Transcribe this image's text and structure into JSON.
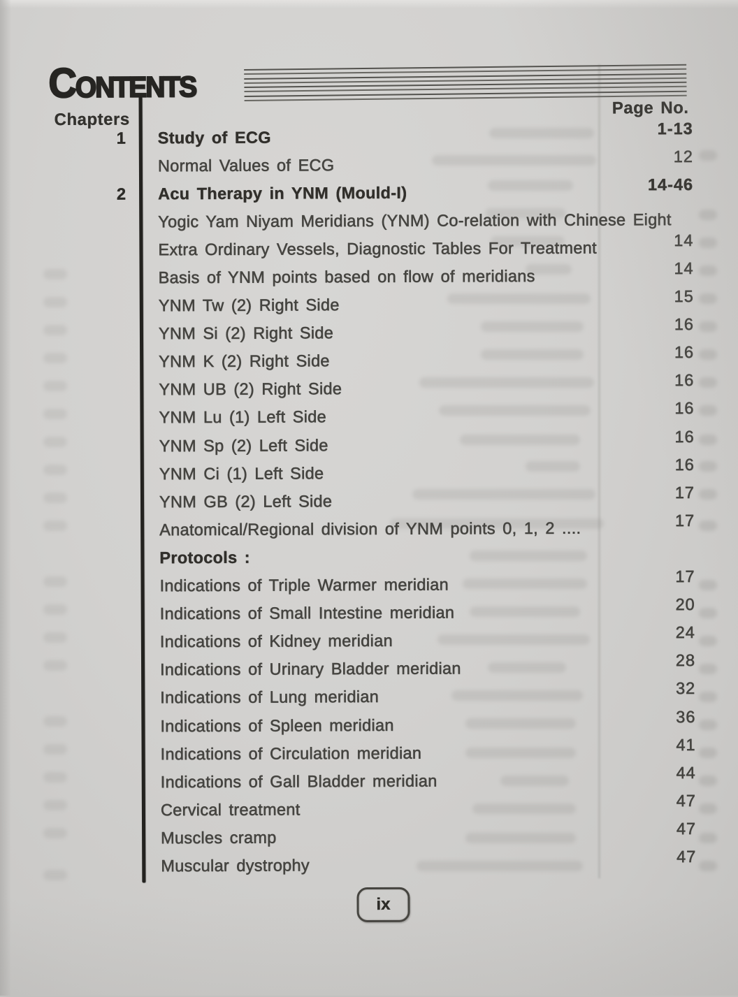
{
  "header": {
    "title": "Contents",
    "chapters_label": "Chapters",
    "page_no_label": "Page No."
  },
  "toc": {
    "entries": [
      {
        "chapter": "1",
        "title": "Study of ECG",
        "page": "1-13",
        "bold": true
      },
      {
        "chapter": "",
        "title": "Normal Values of ECG",
        "page": "12"
      },
      {
        "chapter": "2",
        "title": "Acu Therapy in YNM (Mould-I)",
        "page": "14-46",
        "bold": true
      },
      {
        "chapter": "",
        "title": "Yogic Yam Niyam Meridians (YNM) Co-relation with Chinese Eight",
        "page": ""
      },
      {
        "chapter": "",
        "title": "Extra Ordinary Vessels, Diagnostic Tables For Treatment",
        "page": "14"
      },
      {
        "chapter": "",
        "title": "Basis of YNM points based on flow of meridians",
        "page": "14"
      },
      {
        "chapter": "",
        "title": "YNM Tw (2) Right Side",
        "page": "15"
      },
      {
        "chapter": "",
        "title": "YNM Si (2) Right Side",
        "page": "16"
      },
      {
        "chapter": "",
        "title": "YNM K (2) Right Side",
        "page": "16"
      },
      {
        "chapter": "",
        "title": "YNM UB (2) Right Side",
        "page": "16"
      },
      {
        "chapter": "",
        "title": "YNM Lu (1) Left Side",
        "page": "16"
      },
      {
        "chapter": "",
        "title": "YNM Sp (2) Left Side",
        "page": "16"
      },
      {
        "chapter": "",
        "title": "YNM Ci (1) Left Side",
        "page": "16"
      },
      {
        "chapter": "",
        "title": "YNM GB (2) Left Side",
        "page": "17"
      },
      {
        "chapter": "",
        "title": "Anatomical/Regional division of YNM points 0, 1, 2 ....",
        "page": "17"
      },
      {
        "chapter": "",
        "title": "Protocols :",
        "page": "",
        "bold": true
      },
      {
        "chapter": "",
        "title": "Indications of Triple Warmer meridian",
        "page": "17"
      },
      {
        "chapter": "",
        "title": "Indications of Small Intestine meridian",
        "page": "20"
      },
      {
        "chapter": "",
        "title": "Indications of Kidney meridian",
        "page": "24"
      },
      {
        "chapter": "",
        "title": "Indications of Urinary Bladder meridian",
        "page": "28"
      },
      {
        "chapter": "",
        "title": "Indications of Lung meridian",
        "page": "32"
      },
      {
        "chapter": "",
        "title": "Indications of Spleen meridian",
        "page": "36"
      },
      {
        "chapter": "",
        "title": "Indications of Circulation meridian",
        "page": "41"
      },
      {
        "chapter": "",
        "title": "Indications of Gall Bladder meridian",
        "page": "44"
      },
      {
        "chapter": "",
        "title": "Cervical treatment",
        "page": "47"
      },
      {
        "chapter": "",
        "title": "Muscles cramp",
        "page": "47"
      },
      {
        "chapter": "",
        "title": "Muscular dystrophy",
        "page": "47"
      }
    ]
  },
  "footer": {
    "page_label": "ix"
  },
  "colors": {
    "paper": "#d2d1cf",
    "ink": "#2d2c28",
    "rule": "#23221f"
  }
}
